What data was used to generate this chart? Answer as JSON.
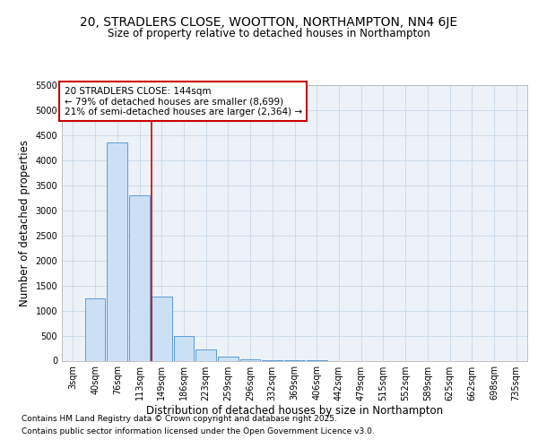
{
  "title_line1": "20, STRADLERS CLOSE, WOOTTON, NORTHAMPTON, NN4 6JE",
  "title_line2": "Size of property relative to detached houses in Northampton",
  "xlabel": "Distribution of detached houses by size in Northampton",
  "ylabel": "Number of detached properties",
  "categories": [
    "3sqm",
    "40sqm",
    "76sqm",
    "113sqm",
    "149sqm",
    "186sqm",
    "223sqm",
    "259sqm",
    "296sqm",
    "332sqm",
    "369sqm",
    "406sqm",
    "442sqm",
    "479sqm",
    "515sqm",
    "552sqm",
    "589sqm",
    "625sqm",
    "662sqm",
    "698sqm",
    "735sqm"
  ],
  "values": [
    0,
    1250,
    4350,
    3300,
    1280,
    500,
    230,
    80,
    30,
    10,
    3,
    1,
    0,
    0,
    0,
    0,
    0,
    0,
    0,
    0,
    0
  ],
  "bar_color": "#cce0f5",
  "bar_edge_color": "#5b9bd5",
  "vline_color": "#cc0000",
  "vline_x": 3.55,
  "ylim_max": 5500,
  "yticks": [
    0,
    500,
    1000,
    1500,
    2000,
    2500,
    3000,
    3500,
    4000,
    4500,
    5000,
    5500
  ],
  "annotation_title": "20 STRADLERS CLOSE: 144sqm",
  "annotation_line1": "← 79% of detached houses are smaller (8,699)",
  "annotation_line2": "21% of semi-detached houses are larger (2,364) →",
  "annotation_box_color": "#ffffff",
  "annotation_box_edge_color": "#cc0000",
  "grid_color": "#c8d8e8",
  "bg_color": "#edf2f9",
  "footer_line1": "Contains HM Land Registry data © Crown copyright and database right 2025.",
  "footer_line2": "Contains public sector information licensed under the Open Government Licence v3.0.",
  "title_fontsize": 10,
  "subtitle_fontsize": 8.5,
  "tick_fontsize": 7,
  "label_fontsize": 8.5,
  "footer_fontsize": 6.5
}
